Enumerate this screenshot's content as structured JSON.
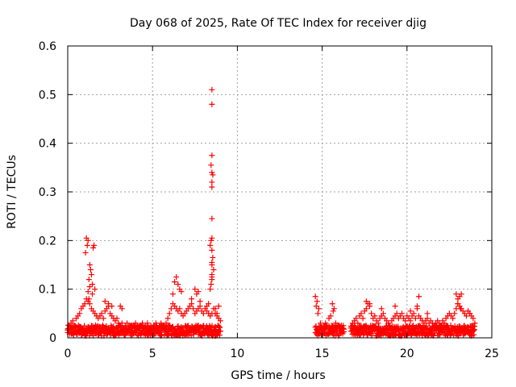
{
  "chart_data": {
    "type": "scatter",
    "title": "Day 068 of 2025, Rate Of TEC Index for receiver djig",
    "xlabel": "GPS time / hours",
    "ylabel": "ROTI / TECUs",
    "xlim": [
      0,
      25
    ],
    "ylim": [
      0,
      0.6
    ],
    "xticks": [
      0,
      5,
      10,
      15,
      20,
      25
    ],
    "yticks": [
      0,
      0.1,
      0.2,
      0.3,
      0.4,
      0.5,
      0.6
    ],
    "xtick_labels": [
      "0",
      "5",
      "10",
      "15",
      "20",
      "25"
    ],
    "ytick_labels": [
      "0",
      "0.1",
      "0.2",
      "0.3",
      "0.4",
      "0.5",
      "0.6"
    ],
    "grid": true,
    "marker": "+",
    "color": "#ff0000",
    "series": [
      {
        "x": [
          0.0,
          0.1,
          0.2,
          0.3,
          0.4,
          0.5,
          0.6,
          0.7,
          0.8,
          0.9,
          1.0,
          1.1,
          1.2,
          1.3,
          1.4,
          1.5,
          1.6,
          1.7,
          1.8,
          1.9,
          2.0,
          2.1,
          2.2,
          2.3,
          2.4,
          2.5,
          2.6,
          2.7,
          2.8,
          2.9,
          3.0,
          3.1,
          3.2,
          3.3,
          3.4,
          3.5,
          3.6,
          3.7,
          3.8,
          3.9,
          4.0,
          4.1,
          4.2,
          4.3,
          4.4,
          4.5,
          4.6,
          4.7,
          4.8,
          4.9,
          5.0,
          5.1,
          5.2,
          5.3,
          5.4,
          5.5,
          5.6,
          5.7,
          5.8,
          5.9,
          6.0,
          6.1,
          6.2,
          6.3,
          6.4,
          6.5,
          6.6,
          6.7,
          6.8,
          6.9,
          7.0,
          7.1,
          7.2,
          7.3,
          7.4,
          7.5,
          7.6,
          7.7,
          7.8,
          7.9,
          8.0,
          8.1,
          8.2,
          8.3,
          8.4,
          8.5,
          8.6,
          8.7,
          8.8,
          8.9,
          9.0,
          1.05,
          1.1,
          1.15,
          1.2,
          1.25,
          1.3,
          1.35,
          1.4,
          1.45,
          1.5,
          1.55,
          1.6,
          1.2,
          1.3,
          1.25,
          1.45,
          2.2,
          2.4,
          2.6,
          3.1,
          3.2,
          6.3,
          6.4,
          6.5,
          6.6,
          6.2,
          6.7,
          7.5,
          7.6,
          7.7,
          7.3,
          7.8,
          8.2,
          8.3,
          8.4,
          8.45,
          8.5,
          8.5,
          8.5,
          8.55,
          8.5,
          8.45,
          8.5,
          8.5,
          8.5,
          8.5,
          8.55,
          8.5,
          8.45,
          8.5,
          8.5,
          8.4,
          8.6,
          8.5,
          8.5,
          8.5,
          8.7,
          8.8,
          8.9,
          14.6,
          14.7,
          14.8,
          14.9,
          15.0,
          15.2,
          15.4,
          15.5,
          15.6,
          15.7,
          15.8,
          15.9,
          16.0,
          16.2,
          14.65,
          14.75,
          15.65,
          15.55,
          16.7,
          16.8,
          16.9,
          17.0,
          17.1,
          17.2,
          17.3,
          17.4,
          17.5,
          17.6,
          17.7,
          17.8,
          17.9,
          18.0,
          18.1,
          18.2,
          18.3,
          18.4,
          18.5,
          18.6,
          18.7,
          18.8,
          18.9,
          19.0,
          19.1,
          19.2,
          19.3,
          19.4,
          19.5,
          19.6,
          19.7,
          19.8,
          19.9,
          20.0,
          20.1,
          20.2,
          20.3,
          20.4,
          20.5,
          20.6,
          20.7,
          20.8,
          20.9,
          21.0,
          21.1,
          21.2,
          21.3,
          21.4,
          21.5,
          21.6,
          21.7,
          21.8,
          21.9,
          22.0,
          22.1,
          22.2,
          22.3,
          22.4,
          22.5,
          22.6,
          22.7,
          22.8,
          22.9,
          23.0,
          23.1,
          23.2,
          23.3,
          23.4,
          23.5,
          23.6,
          23.7,
          23.8,
          23.9,
          24.0,
          17.6,
          17.8,
          18.5,
          19.3,
          20.2,
          20.6,
          20.7,
          21.2,
          22.9,
          23.0,
          23.1,
          23.2,
          23.0,
          23.15,
          23.6,
          23.7
        ],
        "y": [
          0.015,
          0.02,
          0.03,
          0.035,
          0.025,
          0.04,
          0.045,
          0.05,
          0.06,
          0.065,
          0.07,
          0.08,
          0.075,
          0.07,
          0.06,
          0.055,
          0.05,
          0.045,
          0.04,
          0.045,
          0.05,
          0.04,
          0.055,
          0.06,
          0.065,
          0.05,
          0.045,
          0.04,
          0.035,
          0.04,
          0.03,
          0.025,
          0.03,
          0.02,
          0.025,
          0.03,
          0.02,
          0.025,
          0.02,
          0.025,
          0.03,
          0.025,
          0.02,
          0.025,
          0.03,
          0.02,
          0.025,
          0.03,
          0.02,
          0.025,
          0.02,
          0.025,
          0.03,
          0.02,
          0.025,
          0.03,
          0.02,
          0.025,
          0.03,
          0.04,
          0.05,
          0.06,
          0.07,
          0.065,
          0.06,
          0.055,
          0.06,
          0.05,
          0.045,
          0.05,
          0.055,
          0.06,
          0.065,
          0.07,
          0.06,
          0.05,
          0.055,
          0.06,
          0.065,
          0.055,
          0.05,
          0.06,
          0.055,
          0.05,
          0.045,
          0.05,
          0.06,
          0.05,
          0.045,
          0.04,
          0.035,
          0.175,
          0.205,
          0.19,
          0.2,
          0.12,
          0.15,
          0.14,
          0.13,
          0.11,
          0.185,
          0.19,
          0.1,
          0.095,
          0.105,
          0.08,
          0.09,
          0.075,
          0.07,
          0.065,
          0.065,
          0.06,
          0.115,
          0.125,
          0.11,
          0.1,
          0.09,
          0.095,
          0.1,
          0.09,
          0.095,
          0.08,
          0.075,
          0.065,
          0.07,
          0.1,
          0.11,
          0.12,
          0.15,
          0.155,
          0.165,
          0.18,
          0.2,
          0.205,
          0.245,
          0.31,
          0.32,
          0.335,
          0.34,
          0.355,
          0.375,
          0.48,
          0.19,
          0.14,
          0.13,
          0.125,
          0.51,
          0.06,
          0.05,
          0.065,
          0.085,
          0.075,
          0.06,
          0.03,
          0.015,
          0.03,
          0.04,
          0.045,
          0.07,
          0.06,
          0.03,
          0.02,
          0.015,
          0.02,
          0.065,
          0.05,
          0.055,
          0.025,
          0.02,
          0.03,
          0.035,
          0.04,
          0.03,
          0.045,
          0.05,
          0.04,
          0.055,
          0.06,
          0.07,
          0.065,
          0.05,
          0.04,
          0.045,
          0.035,
          0.03,
          0.04,
          0.045,
          0.05,
          0.04,
          0.035,
          0.03,
          0.025,
          0.035,
          0.04,
          0.045,
          0.05,
          0.04,
          0.045,
          0.05,
          0.04,
          0.035,
          0.045,
          0.04,
          0.035,
          0.045,
          0.05,
          0.04,
          0.06,
          0.045,
          0.04,
          0.035,
          0.03,
          0.035,
          0.04,
          0.03,
          0.035,
          0.03,
          0.025,
          0.03,
          0.035,
          0.03,
          0.025,
          0.035,
          0.03,
          0.04,
          0.045,
          0.05,
          0.045,
          0.04,
          0.05,
          0.06,
          0.07,
          0.065,
          0.06,
          0.055,
          0.05,
          0.045,
          0.055,
          0.05,
          0.045,
          0.04,
          0.03,
          0.075,
          0.07,
          0.06,
          0.065,
          0.055,
          0.065,
          0.085,
          0.05,
          0.09,
          0.08,
          0.085,
          0.09,
          0.07,
          0.06,
          0.055,
          0.05
        ]
      }
    ],
    "band_segments": [
      [
        0,
        9
      ],
      [
        14.6,
        16.3
      ],
      [
        16.7,
        24
      ]
    ]
  }
}
